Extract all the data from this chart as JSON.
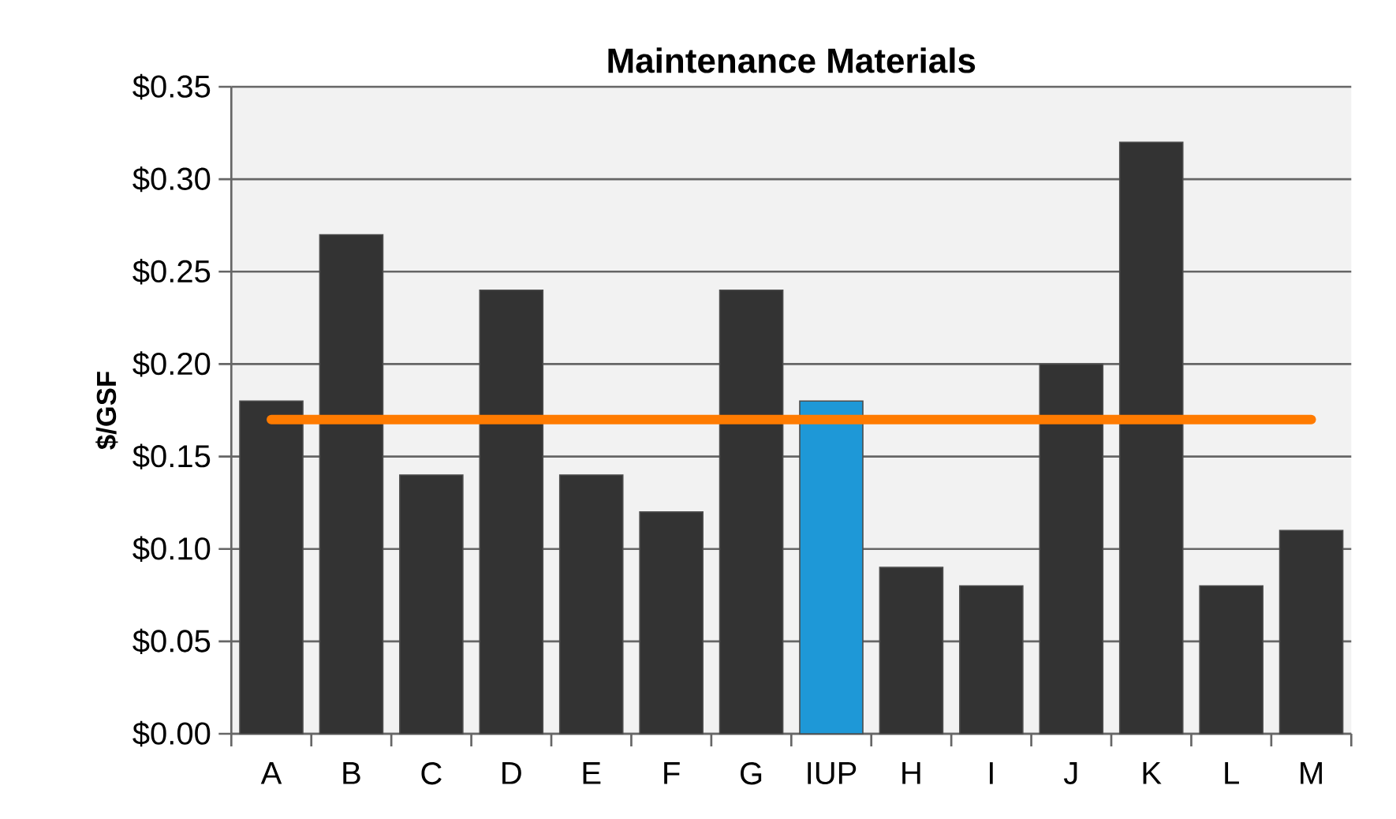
{
  "chart_data": {
    "type": "bar",
    "title": "Maintenance Materials",
    "ylabel": "$/GSF",
    "categories": [
      "A",
      "B",
      "C",
      "D",
      "E",
      "F",
      "G",
      "IUP",
      "H",
      "I",
      "J",
      "K",
      "L",
      "M"
    ],
    "values": [
      0.18,
      0.27,
      0.14,
      0.24,
      0.14,
      0.12,
      0.24,
      0.18,
      0.09,
      0.08,
      0.2,
      0.32,
      0.08,
      0.11
    ],
    "colors": [
      "#333333",
      "#333333",
      "#333333",
      "#333333",
      "#333333",
      "#333333",
      "#333333",
      "#1e98d7",
      "#333333",
      "#333333",
      "#333333",
      "#333333",
      "#333333",
      "#333333"
    ],
    "ylim": [
      0,
      0.35
    ],
    "yticks": [
      {
        "value": 0,
        "label": "$0.00"
      },
      {
        "value": 0.05,
        "label": "$0.05"
      },
      {
        "value": 0.1,
        "label": "$0.10"
      },
      {
        "value": 0.15,
        "label": "$0.15"
      },
      {
        "value": 0.2,
        "label": "$0.20"
      },
      {
        "value": 0.25,
        "label": "$0.25"
      },
      {
        "value": 0.3,
        "label": "$0.30"
      },
      {
        "value": 0.35,
        "label": "$0.35"
      }
    ],
    "ref_lines": [
      {
        "axis": "y",
        "value": 0.17,
        "color": "#ff7b00"
      }
    ],
    "grid": "y"
  }
}
